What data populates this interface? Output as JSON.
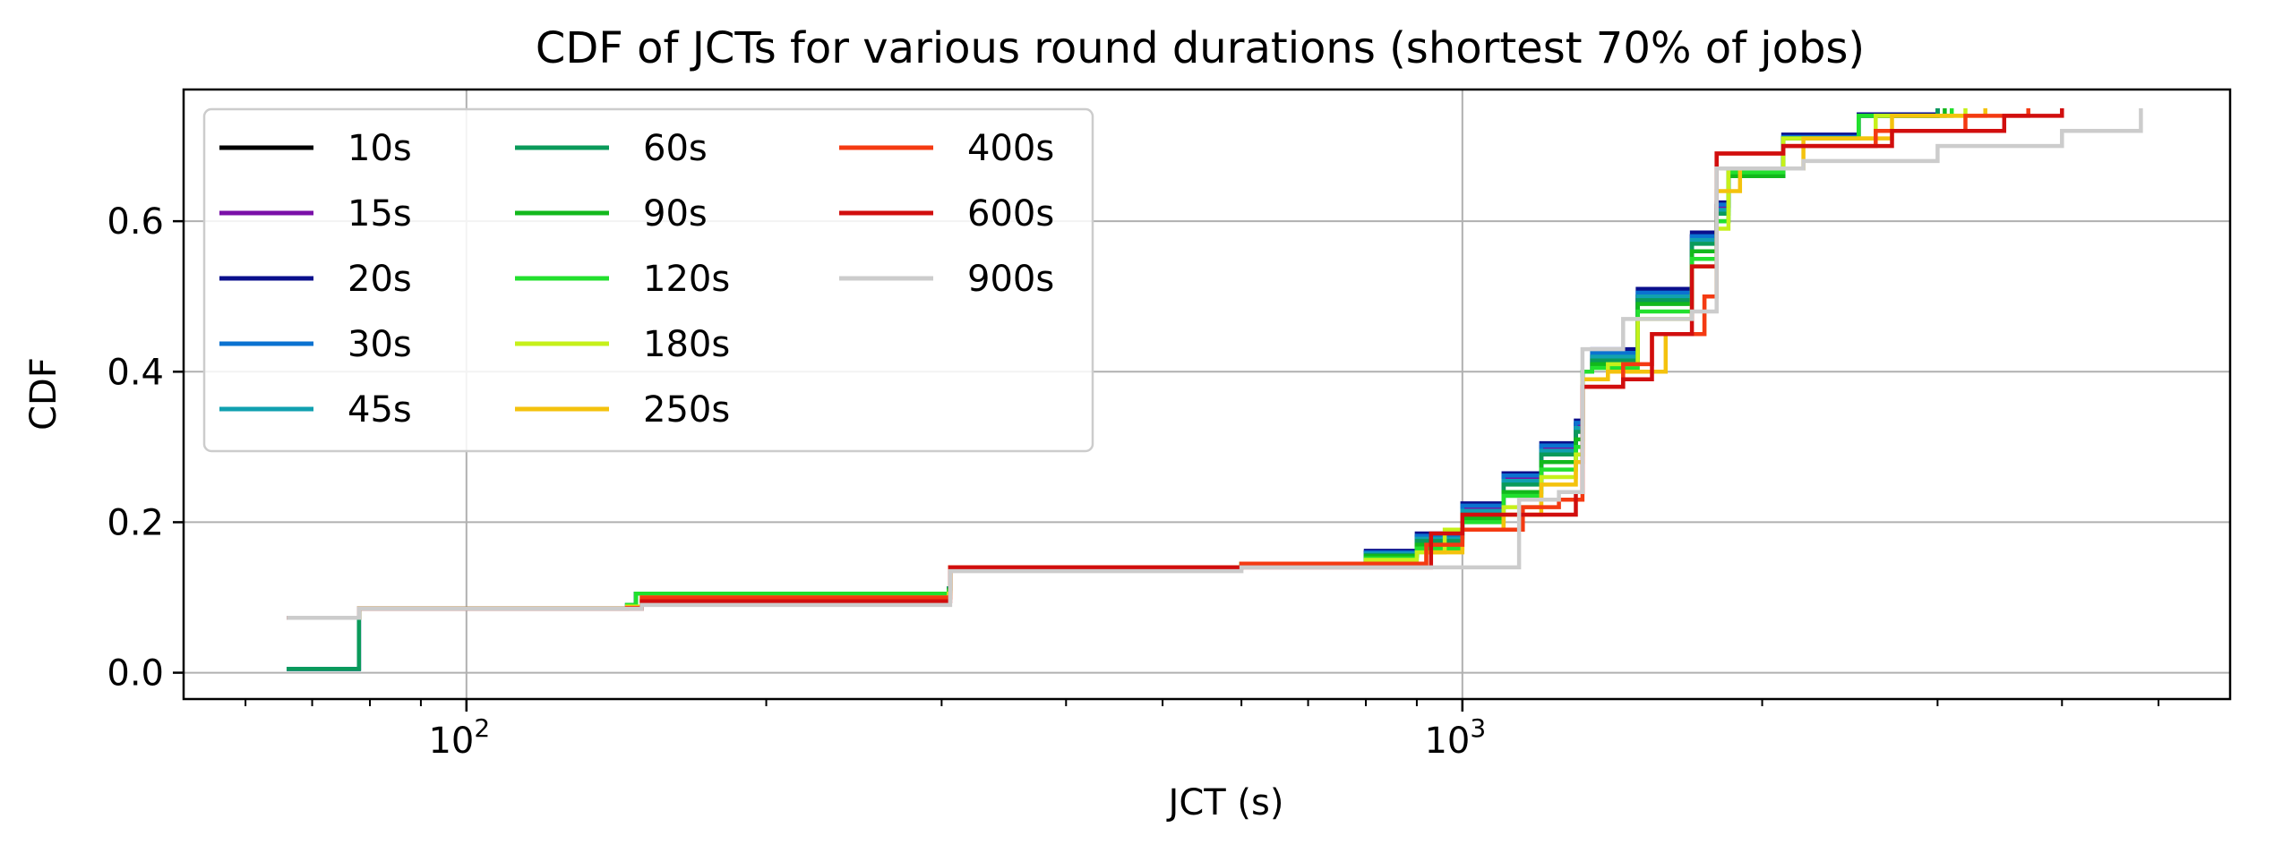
{
  "chart_data": {
    "type": "line",
    "title": "CDF of JCTs for various round durations (shortest 70% of jobs)",
    "xlabel": "JCT (s)",
    "ylabel": "CDF",
    "xscale": "log",
    "xlim": [
      52,
      5900
    ],
    "ylim": [
      -0.035,
      0.775
    ],
    "x_major_ticks": [
      {
        "value": 100,
        "base": "10",
        "exp": "2"
      },
      {
        "value": 1000,
        "base": "10",
        "exp": "3"
      }
    ],
    "y_ticks": [
      {
        "value": 0.0,
        "label": "0.0"
      },
      {
        "value": 0.2,
        "label": "0.2"
      },
      {
        "value": 0.4,
        "label": "0.4"
      },
      {
        "value": 0.6,
        "label": "0.6"
      }
    ],
    "grid": true,
    "legend_position": "top-left",
    "legend_columns": 3,
    "series": [
      {
        "name": "10s",
        "color": "#000000",
        "points": [
          [
            66,
            0.005
          ],
          [
            75,
            0.005
          ],
          [
            78,
            0.085
          ],
          [
            145,
            0.09
          ],
          [
            148,
            0.105
          ],
          [
            305,
            0.112
          ],
          [
            306,
            0.14
          ],
          [
            600,
            0.145
          ],
          [
            800,
            0.16
          ],
          [
            900,
            0.18
          ],
          [
            1000,
            0.22
          ],
          [
            1100,
            0.26
          ],
          [
            1200,
            0.3
          ],
          [
            1300,
            0.33
          ],
          [
            1320,
            0.4
          ],
          [
            1350,
            0.42
          ],
          [
            1500,
            0.5
          ],
          [
            1700,
            0.58
          ],
          [
            1800,
            0.62
          ],
          [
            1850,
            0.66
          ],
          [
            2100,
            0.71
          ],
          [
            2500,
            0.74
          ],
          [
            3000,
            0.75
          ]
        ]
      },
      {
        "name": "15s",
        "color": "#7a0fa8",
        "points": [
          [
            66,
            0.005
          ],
          [
            75,
            0.005
          ],
          [
            78,
            0.085
          ],
          [
            145,
            0.09
          ],
          [
            148,
            0.105
          ],
          [
            305,
            0.112
          ],
          [
            306,
            0.14
          ],
          [
            600,
            0.145
          ],
          [
            800,
            0.16
          ],
          [
            900,
            0.18
          ],
          [
            1000,
            0.22
          ],
          [
            1100,
            0.26
          ],
          [
            1200,
            0.3
          ],
          [
            1300,
            0.33
          ],
          [
            1320,
            0.4
          ],
          [
            1350,
            0.42
          ],
          [
            1500,
            0.5
          ],
          [
            1700,
            0.58
          ],
          [
            1800,
            0.62
          ],
          [
            1850,
            0.66
          ],
          [
            2100,
            0.71
          ],
          [
            2500,
            0.74
          ],
          [
            3000,
            0.75
          ]
        ]
      },
      {
        "name": "20s",
        "color": "#0a0f8c",
        "points": [
          [
            66,
            0.005
          ],
          [
            75,
            0.005
          ],
          [
            78,
            0.085
          ],
          [
            145,
            0.09
          ],
          [
            148,
            0.105
          ],
          [
            305,
            0.112
          ],
          [
            306,
            0.14
          ],
          [
            600,
            0.145
          ],
          [
            800,
            0.162
          ],
          [
            900,
            0.185
          ],
          [
            1000,
            0.225
          ],
          [
            1100,
            0.265
          ],
          [
            1200,
            0.305
          ],
          [
            1300,
            0.335
          ],
          [
            1320,
            0.4
          ],
          [
            1350,
            0.43
          ],
          [
            1500,
            0.51
          ],
          [
            1700,
            0.585
          ],
          [
            1800,
            0.625
          ],
          [
            1850,
            0.665
          ],
          [
            2100,
            0.715
          ],
          [
            2500,
            0.742
          ],
          [
            3000,
            0.75
          ]
        ]
      },
      {
        "name": "30s",
        "color": "#0b72d0",
        "points": [
          [
            66,
            0.005
          ],
          [
            75,
            0.005
          ],
          [
            78,
            0.085
          ],
          [
            145,
            0.09
          ],
          [
            148,
            0.105
          ],
          [
            305,
            0.112
          ],
          [
            306,
            0.14
          ],
          [
            600,
            0.145
          ],
          [
            800,
            0.16
          ],
          [
            900,
            0.182
          ],
          [
            1000,
            0.222
          ],
          [
            1100,
            0.262
          ],
          [
            1200,
            0.302
          ],
          [
            1300,
            0.332
          ],
          [
            1320,
            0.4
          ],
          [
            1350,
            0.425
          ],
          [
            1500,
            0.505
          ],
          [
            1700,
            0.58
          ],
          [
            1800,
            0.622
          ],
          [
            1850,
            0.662
          ],
          [
            2100,
            0.712
          ],
          [
            2500,
            0.74
          ],
          [
            3000,
            0.75
          ]
        ]
      },
      {
        "name": "45s",
        "color": "#11a0b0",
        "points": [
          [
            66,
            0.005
          ],
          [
            75,
            0.005
          ],
          [
            78,
            0.085
          ],
          [
            145,
            0.09
          ],
          [
            148,
            0.105
          ],
          [
            305,
            0.112
          ],
          [
            306,
            0.14
          ],
          [
            600,
            0.145
          ],
          [
            800,
            0.158
          ],
          [
            900,
            0.178
          ],
          [
            1000,
            0.215
          ],
          [
            1100,
            0.255
          ],
          [
            1200,
            0.295
          ],
          [
            1300,
            0.325
          ],
          [
            1320,
            0.4
          ],
          [
            1350,
            0.42
          ],
          [
            1500,
            0.5
          ],
          [
            1700,
            0.575
          ],
          [
            1800,
            0.615
          ],
          [
            1850,
            0.66
          ],
          [
            2100,
            0.71
          ],
          [
            2500,
            0.74
          ],
          [
            3000,
            0.75
          ]
        ]
      },
      {
        "name": "60s",
        "color": "#0a9a5a",
        "points": [
          [
            66,
            0.005
          ],
          [
            75,
            0.005
          ],
          [
            78,
            0.085
          ],
          [
            145,
            0.09
          ],
          [
            148,
            0.105
          ],
          [
            305,
            0.112
          ],
          [
            306,
            0.14
          ],
          [
            600,
            0.145
          ],
          [
            800,
            0.156
          ],
          [
            900,
            0.175
          ],
          [
            1000,
            0.21
          ],
          [
            1100,
            0.25
          ],
          [
            1200,
            0.29
          ],
          [
            1300,
            0.32
          ],
          [
            1320,
            0.4
          ],
          [
            1350,
            0.415
          ],
          [
            1500,
            0.495
          ],
          [
            1700,
            0.57
          ],
          [
            1800,
            0.61
          ],
          [
            1850,
            0.66
          ],
          [
            2100,
            0.71
          ],
          [
            2500,
            0.74
          ],
          [
            3000,
            0.75
          ]
        ]
      },
      {
        "name": "90s",
        "color": "#12b81c",
        "points": [
          [
            66,
            0.073
          ],
          [
            75,
            0.073
          ],
          [
            78,
            0.085
          ],
          [
            145,
            0.09
          ],
          [
            148,
            0.105
          ],
          [
            305,
            0.11
          ],
          [
            306,
            0.14
          ],
          [
            600,
            0.145
          ],
          [
            800,
            0.155
          ],
          [
            900,
            0.17
          ],
          [
            1000,
            0.205
          ],
          [
            1100,
            0.24
          ],
          [
            1200,
            0.28
          ],
          [
            1300,
            0.31
          ],
          [
            1320,
            0.4
          ],
          [
            1350,
            0.41
          ],
          [
            1500,
            0.49
          ],
          [
            1700,
            0.56
          ],
          [
            1800,
            0.6
          ],
          [
            1850,
            0.66
          ],
          [
            2100,
            0.71
          ],
          [
            2500,
            0.74
          ],
          [
            3050,
            0.75
          ]
        ]
      },
      {
        "name": "120s",
        "color": "#22e02e",
        "points": [
          [
            66,
            0.073
          ],
          [
            75,
            0.073
          ],
          [
            78,
            0.085
          ],
          [
            145,
            0.09
          ],
          [
            148,
            0.105
          ],
          [
            305,
            0.108
          ],
          [
            306,
            0.14
          ],
          [
            600,
            0.145
          ],
          [
            800,
            0.152
          ],
          [
            900,
            0.165
          ],
          [
            1000,
            0.2
          ],
          [
            1100,
            0.235
          ],
          [
            1200,
            0.27
          ],
          [
            1300,
            0.3
          ],
          [
            1320,
            0.4
          ],
          [
            1350,
            0.405
          ],
          [
            1500,
            0.48
          ],
          [
            1700,
            0.55
          ],
          [
            1800,
            0.6
          ],
          [
            1850,
            0.665
          ],
          [
            2100,
            0.71
          ],
          [
            2500,
            0.74
          ],
          [
            3100,
            0.75
          ]
        ]
      },
      {
        "name": "180s",
        "color": "#c6f01a",
        "points": [
          [
            66,
            0.073
          ],
          [
            75,
            0.073
          ],
          [
            78,
            0.085
          ],
          [
            145,
            0.088
          ],
          [
            150,
            0.1
          ],
          [
            305,
            0.105
          ],
          [
            306,
            0.14
          ],
          [
            600,
            0.145
          ],
          [
            800,
            0.15
          ],
          [
            900,
            0.16
          ],
          [
            960,
            0.19
          ],
          [
            1100,
            0.22
          ],
          [
            1200,
            0.26
          ],
          [
            1300,
            0.29
          ],
          [
            1320,
            0.39
          ],
          [
            1400,
            0.41
          ],
          [
            1500,
            0.47
          ],
          [
            1700,
            0.54
          ],
          [
            1800,
            0.59
          ],
          [
            1850,
            0.67
          ],
          [
            2100,
            0.71
          ],
          [
            2600,
            0.74
          ],
          [
            3200,
            0.75
          ]
        ]
      },
      {
        "name": "250s",
        "color": "#f4c20d",
        "points": [
          [
            66,
            0.073
          ],
          [
            75,
            0.073
          ],
          [
            78,
            0.085
          ],
          [
            145,
            0.087
          ],
          [
            150,
            0.1
          ],
          [
            305,
            0.1
          ],
          [
            306,
            0.14
          ],
          [
            600,
            0.145
          ],
          [
            800,
            0.145
          ],
          [
            920,
            0.16
          ],
          [
            1000,
            0.19
          ],
          [
            1100,
            0.21
          ],
          [
            1200,
            0.25
          ],
          [
            1300,
            0.28
          ],
          [
            1320,
            0.39
          ],
          [
            1400,
            0.4
          ],
          [
            1600,
            0.45
          ],
          [
            1750,
            0.5
          ],
          [
            1800,
            0.64
          ],
          [
            1900,
            0.67
          ],
          [
            2200,
            0.71
          ],
          [
            2700,
            0.74
          ],
          [
            3350,
            0.75
          ]
        ]
      },
      {
        "name": "400s",
        "color": "#f43a12",
        "points": [
          [
            66,
            0.073
          ],
          [
            75,
            0.073
          ],
          [
            78,
            0.085
          ],
          [
            145,
            0.086
          ],
          [
            150,
            0.1
          ],
          [
            305,
            0.1
          ],
          [
            306,
            0.14
          ],
          [
            600,
            0.145
          ],
          [
            850,
            0.145
          ],
          [
            920,
            0.17
          ],
          [
            1000,
            0.19
          ],
          [
            1150,
            0.22
          ],
          [
            1250,
            0.23
          ],
          [
            1320,
            0.38
          ],
          [
            1450,
            0.41
          ],
          [
            1550,
            0.45
          ],
          [
            1750,
            0.5
          ],
          [
            1800,
            0.69
          ],
          [
            2100,
            0.7
          ],
          [
            2600,
            0.72
          ],
          [
            3200,
            0.74
          ],
          [
            3700,
            0.75
          ]
        ]
      },
      {
        "name": "600s",
        "color": "#d10e0e",
        "points": [
          [
            66,
            0.073
          ],
          [
            75,
            0.073
          ],
          [
            78,
            0.085
          ],
          [
            145,
            0.085
          ],
          [
            150,
            0.095
          ],
          [
            305,
            0.095
          ],
          [
            306,
            0.14
          ],
          [
            600,
            0.14
          ],
          [
            900,
            0.14
          ],
          [
            930,
            0.185
          ],
          [
            1000,
            0.21
          ],
          [
            1200,
            0.21
          ],
          [
            1300,
            0.24
          ],
          [
            1320,
            0.38
          ],
          [
            1450,
            0.39
          ],
          [
            1550,
            0.45
          ],
          [
            1700,
            0.54
          ],
          [
            1800,
            0.69
          ],
          [
            2100,
            0.7
          ],
          [
            2700,
            0.72
          ],
          [
            3500,
            0.74
          ],
          [
            4000,
            0.75
          ]
        ]
      },
      {
        "name": "900s",
        "color": "#cccccc",
        "points": [
          [
            66,
            0.073
          ],
          [
            75,
            0.073
          ],
          [
            78,
            0.085
          ],
          [
            145,
            0.085
          ],
          [
            150,
            0.09
          ],
          [
            305,
            0.09
          ],
          [
            306,
            0.135
          ],
          [
            600,
            0.14
          ],
          [
            1130,
            0.14
          ],
          [
            1140,
            0.23
          ],
          [
            1250,
            0.24
          ],
          [
            1320,
            0.43
          ],
          [
            1450,
            0.47
          ],
          [
            1700,
            0.48
          ],
          [
            1800,
            0.67
          ],
          [
            2200,
            0.68
          ],
          [
            3000,
            0.7
          ],
          [
            4000,
            0.72
          ],
          [
            4800,
            0.75
          ]
        ]
      }
    ]
  }
}
